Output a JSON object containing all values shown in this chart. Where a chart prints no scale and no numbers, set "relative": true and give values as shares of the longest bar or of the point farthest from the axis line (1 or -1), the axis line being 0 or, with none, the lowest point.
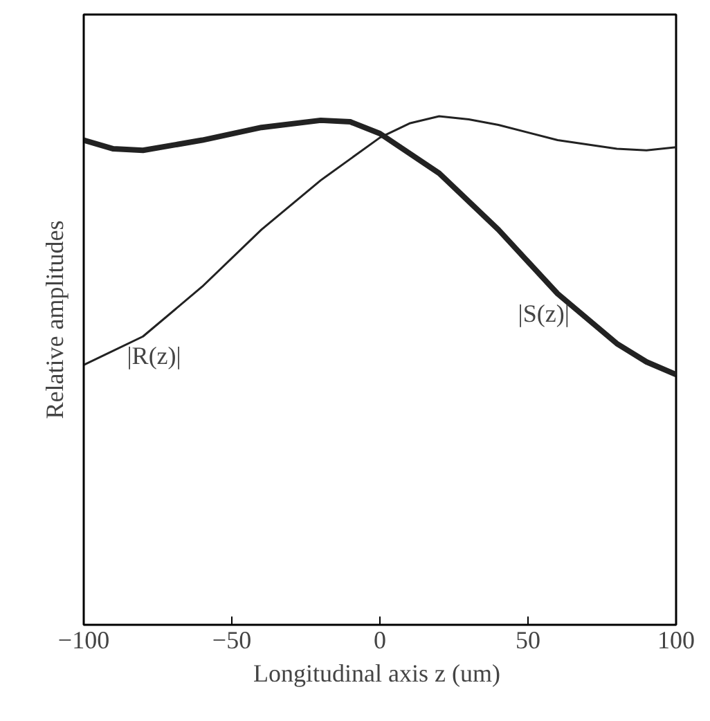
{
  "chart_data": {
    "type": "line",
    "relative": true,
    "xlabel": "Longitudinal axis  z (um)",
    "ylabel": "Relative amplitudes",
    "xlim": [
      -100,
      100
    ],
    "xticks": [
      -100,
      -50,
      0,
      50,
      100
    ],
    "grid": false,
    "marker": "none",
    "line_style": "solid",
    "tick_labels": "x",
    "series": [
      {
        "name": "|R(z)|",
        "color": "#222222",
        "x": [
          -100,
          -80,
          -60,
          -40,
          -20,
          0,
          10,
          20,
          30,
          40,
          60,
          80,
          90,
          100
        ],
        "values": [
          0.511,
          0.567,
          0.665,
          0.777,
          0.874,
          0.958,
          0.986,
          1,
          0.994,
          0.983,
          0.953,
          0.936,
          0.933,
          0.939
        ]
      },
      {
        "name": "|S(z)|",
        "color": "#222222",
        "x": [
          -100,
          -90,
          -80,
          -60,
          -40,
          -20,
          -10,
          0,
          20,
          40,
          60,
          80,
          90,
          100
        ],
        "values": [
          0.953,
          0.936,
          0.933,
          0.953,
          0.978,
          0.992,
          0.989,
          0.966,
          0.888,
          0.777,
          0.651,
          0.553,
          0.517,
          0.492
        ]
      }
    ]
  }
}
